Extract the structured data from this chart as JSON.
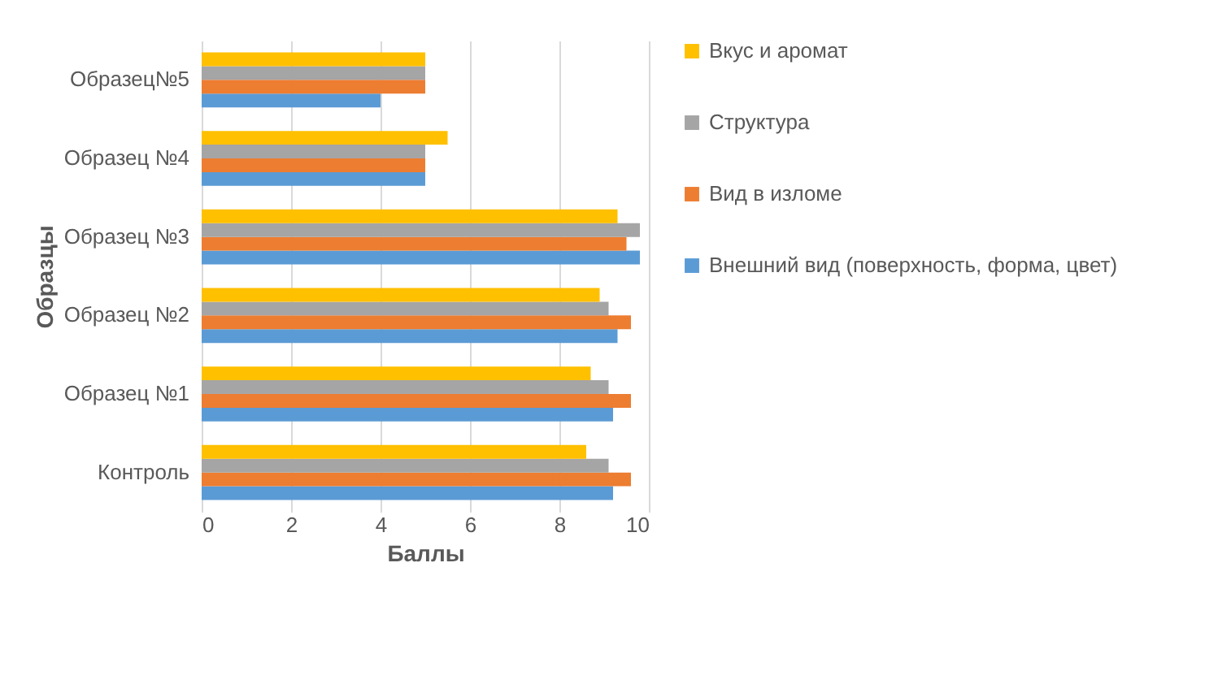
{
  "chart_data": {
    "type": "bar",
    "orientation": "horizontal",
    "xlabel": "Баллы",
    "ylabel": "Образцы",
    "categories": [
      "Образец№5",
      "Образец №4",
      "Образец №3",
      "Образец №2",
      "Образец №1",
      "Контроль"
    ],
    "series": [
      {
        "name": "Внешний вид (поверхность, форма, цвет)",
        "color": "#5b9bd5",
        "values": [
          4,
          5,
          9.8,
          9.3,
          9.2,
          9.2
        ]
      },
      {
        "name": "Вид в изломе",
        "color": "#ed7d31",
        "values": [
          5,
          5,
          9.5,
          9.6,
          9.6,
          9.6
        ]
      },
      {
        "name": "Структура",
        "color": "#a5a5a5",
        "values": [
          5,
          5,
          9.8,
          9.1,
          9.1,
          9.1
        ]
      },
      {
        "name": "Вкус и аромат",
        "color": "#ffc000",
        "values": [
          5,
          5.5,
          9.3,
          8.9,
          8.7,
          8.6
        ]
      }
    ],
    "xlim": [
      0,
      10
    ],
    "xticks": [
      0,
      2,
      4,
      6,
      8,
      10
    ],
    "grid": "x",
    "legend": "right"
  }
}
